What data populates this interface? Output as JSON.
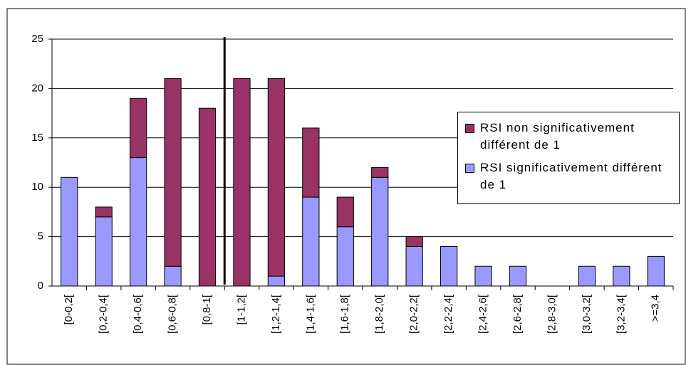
{
  "chart_data": {
    "type": "stacked_bar",
    "categories": [
      "[0-0,2[",
      "[0,2-0,4[",
      "[0,4-0,6[",
      "[0,6-0,8[",
      "[0,8-1[",
      "[1-1,2[",
      "[1,2-1,4[",
      "[1,4-1,6[",
      "[1,6-1,8[",
      "[1,8-2,0[",
      "[2,0-2,2[",
      "[2,2-2,4[",
      "[2,4-2,6[",
      "[2,6-2,8[",
      "[2,8-3,0[",
      "[3,0-3,2[",
      "[3,2-3,4[",
      ">=3,4"
    ],
    "series": [
      {
        "name": "RSI significativement différent de 1",
        "color": "#9999ff",
        "values": [
          11,
          7,
          13,
          2,
          0,
          0,
          1,
          9,
          6,
          11,
          4,
          4,
          2,
          2,
          0,
          2,
          2,
          3
        ]
      },
      {
        "name": "RSI non significativement différent de 1",
        "color": "#993366",
        "values": [
          0,
          1,
          6,
          19,
          18,
          21,
          20,
          7,
          3,
          1,
          1,
          0,
          0,
          0,
          0,
          0,
          0,
          0
        ]
      }
    ],
    "ylim": [
      0,
      25
    ],
    "yticks": [
      0,
      5,
      10,
      15,
      20,
      25
    ],
    "grid": true,
    "legend": "right"
  }
}
